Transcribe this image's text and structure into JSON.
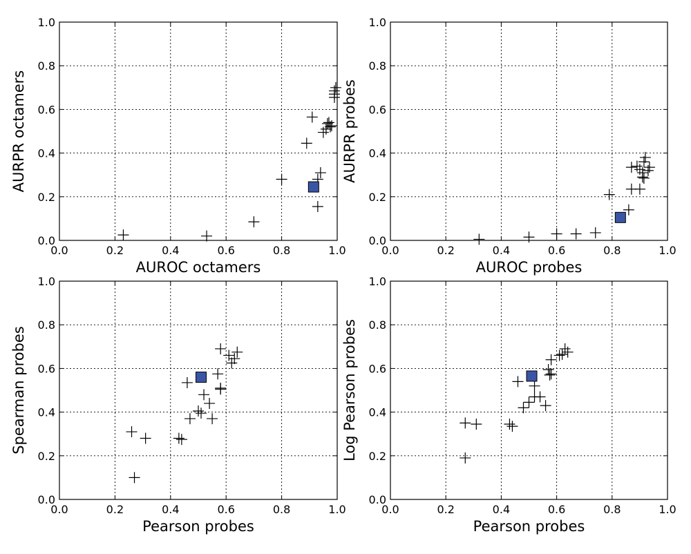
{
  "chart_data": [
    {
      "type": "scatter",
      "xlabel": "AUROC octamers",
      "ylabel": "AURPR octamers",
      "xlim": [
        0.0,
        1.0
      ],
      "ylim": [
        0.0,
        1.0
      ],
      "xticks": [
        "0.0",
        "0.2",
        "0.4",
        "0.6",
        "0.8",
        "1.0"
      ],
      "yticks": [
        "0.0",
        "0.2",
        "0.4",
        "0.6",
        "0.8",
        "1.0"
      ],
      "grid": true,
      "series": [
        {
          "marker": "plus",
          "color": "#000000",
          "points": [
            [
              0.23,
              0.025
            ],
            [
              0.53,
              0.02
            ],
            [
              0.7,
              0.085
            ],
            [
              0.8,
              0.28
            ],
            [
              0.89,
              0.445
            ],
            [
              0.91,
              0.565
            ],
            [
              0.93,
              0.28
            ],
            [
              0.93,
              0.155
            ],
            [
              0.94,
              0.31
            ],
            [
              0.95,
              0.495
            ],
            [
              0.96,
              0.51
            ],
            [
              0.965,
              0.535
            ],
            [
              0.97,
              0.54
            ],
            [
              0.975,
              0.52
            ],
            [
              0.98,
              0.525
            ],
            [
              0.99,
              0.655
            ],
            [
              0.99,
              0.67
            ],
            [
              0.99,
              0.685
            ],
            [
              0.995,
              0.7
            ]
          ]
        },
        {
          "marker": "square",
          "color": "#3a55a4",
          "points": [
            [
              0.915,
              0.245
            ]
          ]
        }
      ]
    },
    {
      "type": "scatter",
      "xlabel": "AUROC probes",
      "ylabel": "AURPR probes",
      "xlim": [
        0.0,
        1.0
      ],
      "ylim": [
        0.0,
        1.0
      ],
      "xticks": [
        "0.0",
        "0.2",
        "0.4",
        "0.6",
        "0.8",
        "1.0"
      ],
      "yticks": [
        "0.0",
        "0.2",
        "0.4",
        "0.6",
        "0.8",
        "1.0"
      ],
      "grid": true,
      "series": [
        {
          "marker": "plus",
          "color": "#000000",
          "points": [
            [
              0.32,
              0.005
            ],
            [
              0.5,
              0.015
            ],
            [
              0.6,
              0.03
            ],
            [
              0.67,
              0.03
            ],
            [
              0.74,
              0.035
            ],
            [
              0.79,
              0.21
            ],
            [
              0.86,
              0.14
            ],
            [
              0.87,
              0.235
            ],
            [
              0.87,
              0.335
            ],
            [
              0.89,
              0.34
            ],
            [
              0.9,
              0.235
            ],
            [
              0.9,
              0.325
            ],
            [
              0.91,
              0.29
            ],
            [
              0.91,
              0.31
            ],
            [
              0.915,
              0.285
            ],
            [
              0.915,
              0.36
            ],
            [
              0.92,
              0.38
            ],
            [
              0.93,
              0.32
            ],
            [
              0.935,
              0.335
            ]
          ]
        },
        {
          "marker": "square",
          "color": "#3a55a4",
          "points": [
            [
              0.83,
              0.105
            ]
          ]
        }
      ]
    },
    {
      "type": "scatter",
      "xlabel": "Pearson probes",
      "ylabel": "Spearman probes",
      "xlim": [
        0.0,
        1.0
      ],
      "ylim": [
        0.0,
        1.0
      ],
      "xticks": [
        "0.0",
        "0.2",
        "0.4",
        "0.6",
        "0.8",
        "1.0"
      ],
      "yticks": [
        "0.0",
        "0.2",
        "0.4",
        "0.6",
        "0.8",
        "1.0"
      ],
      "grid": true,
      "series": [
        {
          "marker": "plus",
          "color": "#000000",
          "points": [
            [
              0.26,
              0.31
            ],
            [
              0.27,
              0.1
            ],
            [
              0.31,
              0.28
            ],
            [
              0.43,
              0.28
            ],
            [
              0.44,
              0.275
            ],
            [
              0.46,
              0.535
            ],
            [
              0.47,
              0.37
            ],
            [
              0.5,
              0.405
            ],
            [
              0.51,
              0.395
            ],
            [
              0.52,
              0.48
            ],
            [
              0.54,
              0.44
            ],
            [
              0.55,
              0.37
            ],
            [
              0.57,
              0.575
            ],
            [
              0.58,
              0.51
            ],
            [
              0.58,
              0.505
            ],
            [
              0.58,
              0.69
            ],
            [
              0.61,
              0.66
            ],
            [
              0.62,
              0.625
            ],
            [
              0.63,
              0.645
            ],
            [
              0.64,
              0.675
            ]
          ]
        },
        {
          "marker": "square",
          "color": "#3a55a4",
          "points": [
            [
              0.51,
              0.56
            ]
          ]
        }
      ]
    },
    {
      "type": "scatter",
      "xlabel": "Pearson probes",
      "ylabel": "Log Pearson probes",
      "xlim": [
        0.0,
        1.0
      ],
      "ylim": [
        0.0,
        1.0
      ],
      "xticks": [
        "0.0",
        "0.2",
        "0.4",
        "0.6",
        "0.8",
        "1.0"
      ],
      "yticks": [
        "0.0",
        "0.2",
        "0.4",
        "0.6",
        "0.8",
        "1.0"
      ],
      "grid": true,
      "series": [
        {
          "marker": "plus",
          "color": "#000000",
          "points": [
            [
              0.27,
              0.35
            ],
            [
              0.27,
              0.19
            ],
            [
              0.31,
              0.345
            ],
            [
              0.43,
              0.345
            ],
            [
              0.44,
              0.335
            ],
            [
              0.46,
              0.54
            ],
            [
              0.48,
              0.42
            ],
            [
              0.5,
              0.445
            ],
            [
              0.52,
              0.52
            ],
            [
              0.52,
              0.47
            ],
            [
              0.54,
              0.47
            ],
            [
              0.56,
              0.43
            ],
            [
              0.57,
              0.595
            ],
            [
              0.575,
              0.57
            ],
            [
              0.58,
              0.575
            ],
            [
              0.58,
              0.64
            ],
            [
              0.61,
              0.66
            ],
            [
              0.62,
              0.665
            ],
            [
              0.63,
              0.69
            ],
            [
              0.64,
              0.675
            ]
          ]
        },
        {
          "marker": "square",
          "color": "#3a55a4",
          "points": [
            [
              0.51,
              0.565
            ]
          ]
        }
      ]
    }
  ]
}
